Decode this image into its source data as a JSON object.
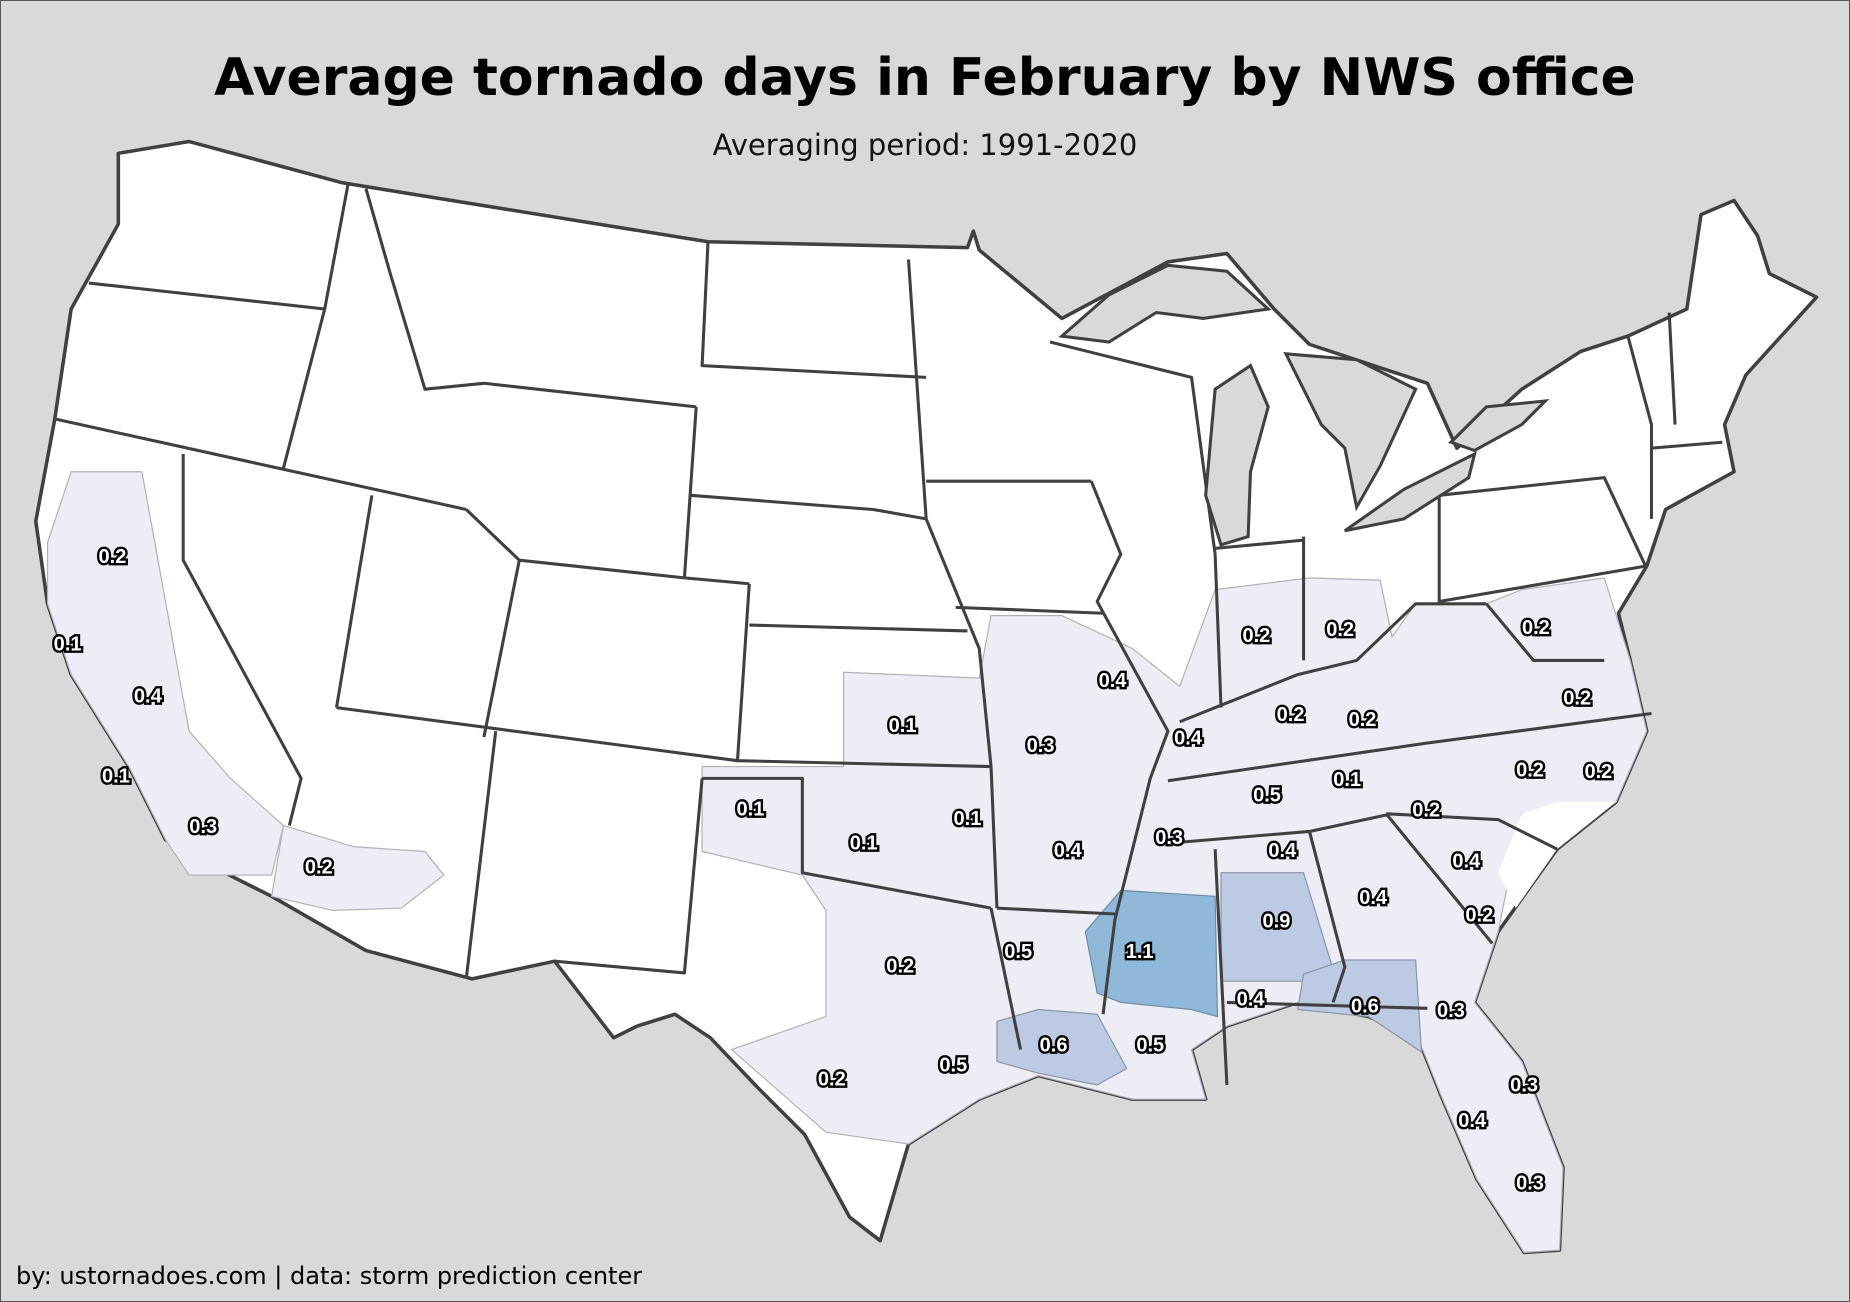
{
  "title": "Average tornado days in February by NWS office",
  "subtitle": "Averaging period: 1991-2020",
  "footer": "by: ustornadoes.com | data: storm prediction center",
  "colors": {
    "background": "#d9d9d9",
    "none": "#ffffff",
    "low": "#ecedf5",
    "mid": "#bccbe3",
    "high": "#8fb8d9",
    "border": "#404040"
  },
  "labels": [
    "0.2",
    "0.1",
    "0.4",
    "0.1",
    "0.3",
    "0.2",
    "0.1",
    "0.1",
    "0.1",
    "0.1",
    "0.2",
    "0.5",
    "0.2",
    "0.5",
    "0.3",
    "0.4",
    "0.4",
    "0.2",
    "0.2",
    "0.2",
    "0.2",
    "0.2",
    "0.2",
    "0.2",
    "0.2",
    "0.5",
    "0.1",
    "0.2",
    "0.3",
    "0.4",
    "0.4",
    "0.4",
    "0.4",
    "0.2",
    "1.1",
    "0.9",
    "0.6",
    "0.5",
    "0.4",
    "0.6",
    "0.3",
    "0.3",
    "0.4",
    "0.3"
  ]
}
